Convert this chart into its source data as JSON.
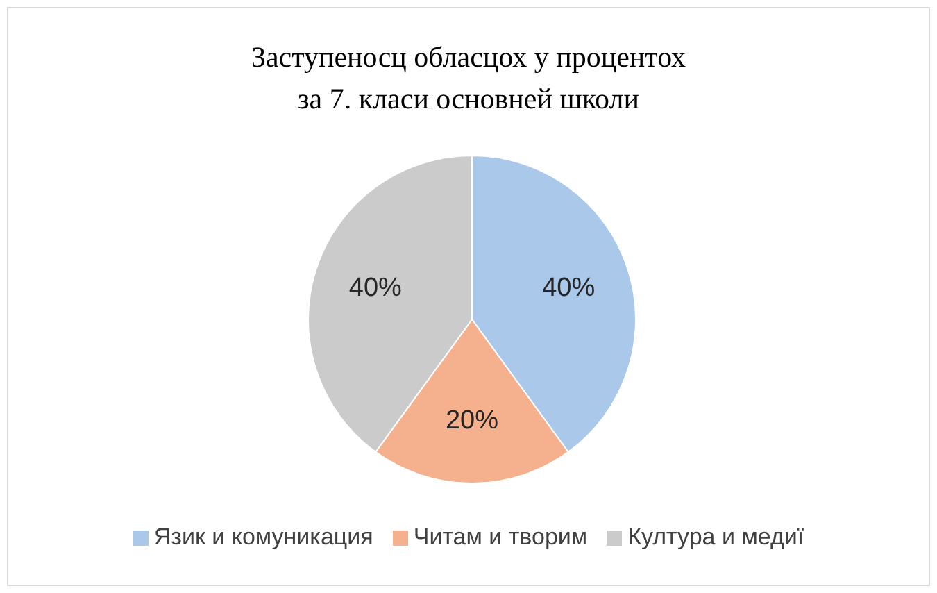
{
  "chart_data": {
    "type": "pie",
    "title": "Заступеносц обласцох у процентох\nза 7. класи основней школи",
    "categories": [
      "Язик и комуникация",
      "Читам и творим",
      "Култура и медиї"
    ],
    "values": [
      40,
      20,
      40
    ],
    "colors": [
      "#a9c8ea",
      "#f5b08e",
      "#cbcbcb"
    ],
    "value_labels": [
      "40%",
      "20%",
      "40%"
    ],
    "legend": "bottom"
  }
}
